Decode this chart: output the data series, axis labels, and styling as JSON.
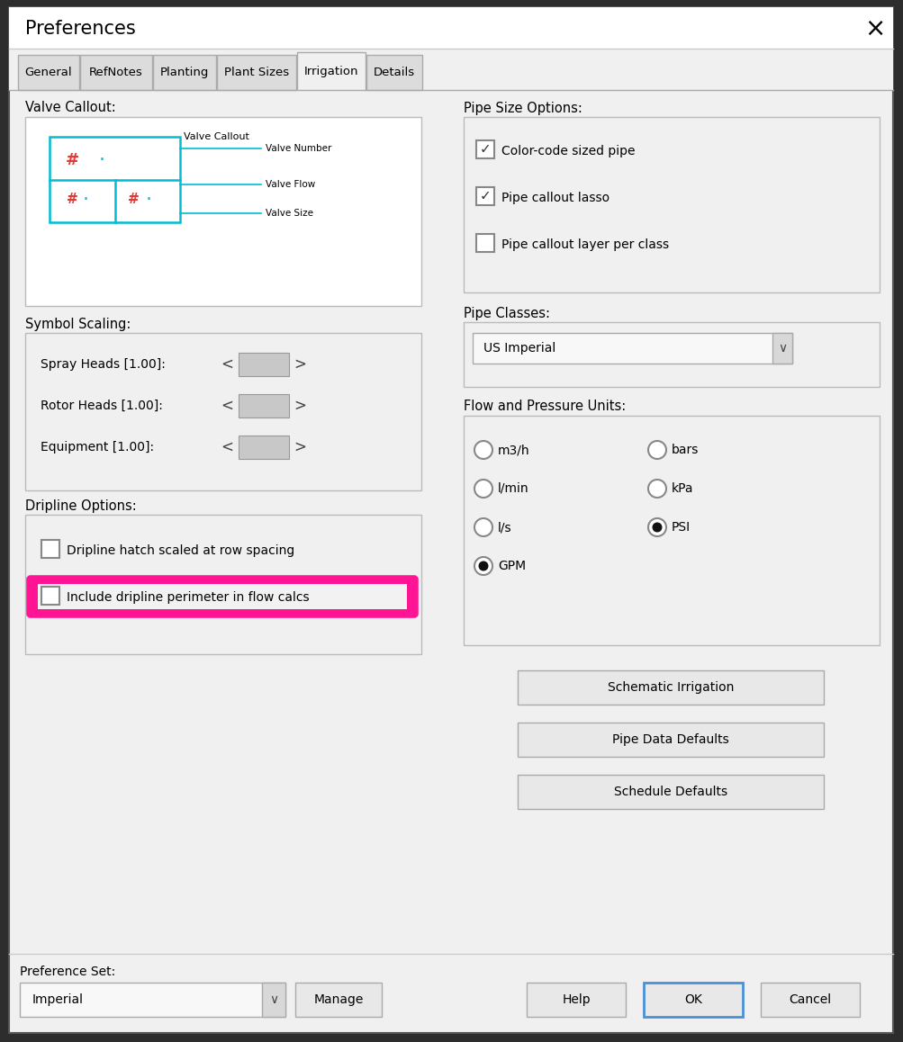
{
  "title": "Preferences",
  "outer_bg": "#2d2d2d",
  "dialog_bg": "#f0f0f0",
  "title_bar_bg": "#ffffff",
  "tab_bar_bg": "#f0f0f0",
  "content_bg": "#f0f0f0",
  "tabs": [
    "General",
    "RefNotes",
    "Planting",
    "Plant Sizes",
    "Irrigation",
    "Details"
  ],
  "active_tab": "Irrigation",
  "left_panel": {
    "valve_callout_label": "Valve Callout:",
    "symbol_scaling_label": "Symbol Scaling:",
    "scaling_items": [
      "Spray Heads [1.00]:",
      "Rotor Heads [1.00]:",
      "Equipment [1.00]:"
    ],
    "dripline_label": "Dripline Options:",
    "dripline_items": [
      {
        "text": "Dripline hatch scaled at row spacing",
        "checked": false,
        "highlighted": false
      },
      {
        "text": "Include dripline perimeter in flow calcs",
        "checked": false,
        "highlighted": true
      }
    ]
  },
  "right_panel": {
    "pipe_size_label": "Pipe Size Options:",
    "pipe_size_items": [
      {
        "text": "Color-code sized pipe",
        "checked": true
      },
      {
        "text": "Pipe callout lasso",
        "checked": true
      },
      {
        "text": "Pipe callout layer per class",
        "checked": false
      }
    ],
    "pipe_classes_label": "Pipe Classes:",
    "pipe_classes_value": "US Imperial",
    "flow_pressure_label": "Flow and Pressure Units:",
    "flow_options": [
      "m3/h",
      "l/min",
      "l/s",
      "GPM"
    ],
    "flow_selected": "GPM",
    "pressure_options": [
      "bars",
      "kPa",
      "PSI"
    ],
    "pressure_selected": "PSI",
    "action_buttons": [
      "Schematic Irrigation",
      "Pipe Data Defaults",
      "Schedule Defaults"
    ]
  },
  "bottom": {
    "preference_set_label": "Preference Set:",
    "preference_set_value": "Imperial"
  },
  "highlight_color": "#FF1493",
  "valve_callout_color": "#00bcd4",
  "valve_hash_color": "#e53935",
  "checkbox_border": "#888888",
  "section_border": "#bbbbbb",
  "btn_bg": "#e8e8e8",
  "btn_border": "#aaaaaa",
  "ok_border": "#4a90d9",
  "dropdown_bg": "#f8f8f8",
  "slider_gray": "#c8c8c8"
}
